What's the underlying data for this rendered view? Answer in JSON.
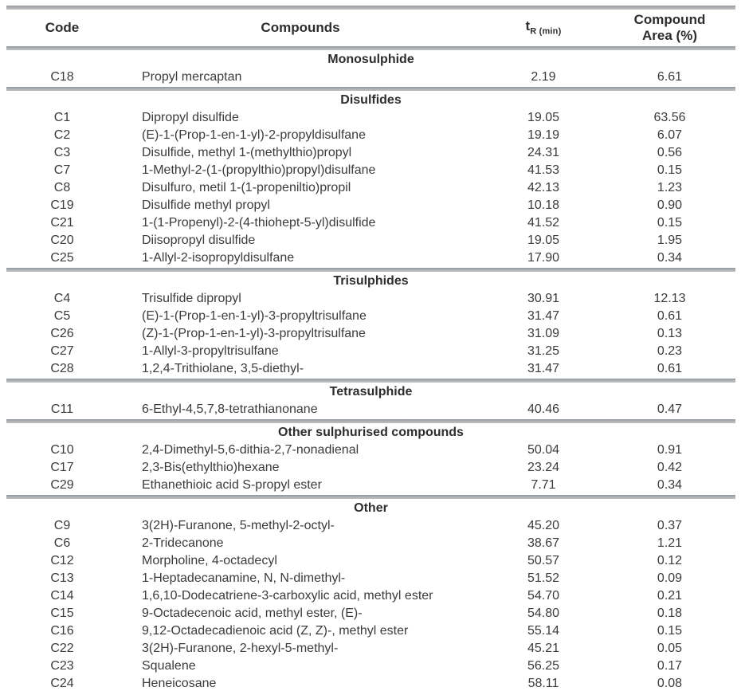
{
  "header": {
    "code": "Code",
    "compounds": "Compounds",
    "tr_base": "t",
    "tr_sub": "R (min)",
    "area_line1": "Compound",
    "area_line2": "Area (%)"
  },
  "sections": [
    {
      "title": "Monosulphide",
      "rows": [
        {
          "code": "C18",
          "compound": "Propyl mercaptan",
          "tr": "2.19",
          "area": "6.61"
        }
      ]
    },
    {
      "title": "Disulfides",
      "rows": [
        {
          "code": "C1",
          "compound": "Dipropyl disulfide",
          "tr": "19.05",
          "area": "63.56"
        },
        {
          "code": "C2",
          "compound": "(E)-1-(Prop-1-en-1-yl)-2-propyldisulfane",
          "tr": "19.19",
          "area": "6.07"
        },
        {
          "code": "C3",
          "compound": "Disulfide, methyl 1-(methylthio)propyl",
          "tr": "24.31",
          "area": "0.56"
        },
        {
          "code": "C7",
          "compound": "1-Methyl-2-(1-(propylthio)propyl)disulfane",
          "tr": "41.53",
          "area": "0.15"
        },
        {
          "code": "C8",
          "compound": "Disulfuro, metil 1-(1-propeniltio)propil",
          "tr": "42.13",
          "area": "1.23"
        },
        {
          "code": "C19",
          "compound": "Disulfide  methyl propyl",
          "tr": "10.18",
          "area": "0.90"
        },
        {
          "code": "C21",
          "compound": "1-(1-Propenyl)-2-(4-thiohept-5-yl)disulfide",
          "tr": "41.52",
          "area": "0.15"
        },
        {
          "code": "C20",
          "compound": "Diisopropyl disulfide",
          "tr": "19.05",
          "area": "1.95"
        },
        {
          "code": "C25",
          "compound": "1-Allyl-2-isopropyldisulfane",
          "tr": "17.90",
          "area": "0.34"
        }
      ]
    },
    {
      "title": "Trisulphides",
      "rows": [
        {
          "code": "C4",
          "compound": "Trisulfide  dipropyl",
          "tr": "30.91",
          "area": "12.13"
        },
        {
          "code": "C5",
          "compound": "(E)-1-(Prop-1-en-1-yl)-3-propyltrisulfane",
          "tr": "31.47",
          "area": "0.61"
        },
        {
          "code": "C26",
          "compound": "(Z)-1-(Prop-1-en-1-yl)-3-propyltrisulfane",
          "tr": "31.09",
          "area": "0.13"
        },
        {
          "code": "C27",
          "compound": "1-Allyl-3-propyltrisulfane",
          "tr": "31.25",
          "area": "0.23"
        },
        {
          "code": "C28",
          "compound": "1,2,4-Trithiolane, 3,5-diethyl-",
          "tr": "31.47",
          "area": "0.61"
        }
      ]
    },
    {
      "title": "Tetrasulphide",
      "rows": [
        {
          "code": "C11",
          "compound": "6-Ethyl-4,5,7,8-tetrathianonane",
          "tr": "40.46",
          "area": "0.47"
        }
      ]
    },
    {
      "title": "Other sulphurised compounds",
      "rows": [
        {
          "code": "C10",
          "compound": "2,4-Dimethyl-5,6-dithia-2,7-nonadienal",
          "tr": "50.04",
          "area": "0.91"
        },
        {
          "code": "C17",
          "compound": "2,3-Bis(ethylthio)hexane",
          "tr": "23.24",
          "area": "0.42"
        },
        {
          "code": "C29",
          "compound": "Ethanethioic acid S-propyl ester",
          "tr": "7.71",
          "area": "0.34"
        }
      ]
    },
    {
      "title": "Other",
      "rows": [
        {
          "code": "C9",
          "compound": "3(2H)-Furanone, 5-methyl-2-octyl-",
          "tr": "45.20",
          "area": "0.37"
        },
        {
          "code": "C6",
          "compound": "2-Tridecanone",
          "tr": "38.67",
          "area": "1.21"
        },
        {
          "code": "C12",
          "compound": "Morpholine, 4-octadecyl",
          "tr": "50.57",
          "area": "0.12"
        },
        {
          "code": "C13",
          "compound": "1-Heptadecanamine, N, N-dimethyl-",
          "tr": "51.52",
          "area": "0.09"
        },
        {
          "code": "C14",
          "compound": "1,6,10-Dodecatriene-3-carboxylic acid, methyl ester",
          "tr": "54.70",
          "area": "0.21"
        },
        {
          "code": "C15",
          "compound": "9-Octadecenoic acid, methyl ester, (E)-",
          "tr": "54.80",
          "area": "0.18"
        },
        {
          "code": "C16",
          "compound": "9,12-Octadecadienoic acid (Z, Z)-, methyl ester",
          "tr": "55.14",
          "area": "0.15"
        },
        {
          "code": "C22",
          "compound": "3(2H)-Furanone, 2-hexyl-5-methyl-",
          "tr": "45.21",
          "area": "0.05"
        },
        {
          "code": "C23",
          "compound": "Squalene",
          "tr": "56.25",
          "area": "0.17"
        },
        {
          "code": "C24",
          "compound": "Heneicosane",
          "tr": "58.11",
          "area": "0.08"
        }
      ]
    }
  ],
  "colors": {
    "divider_dark": "#8e949a",
    "divider_light": "#bfbfbf",
    "text": "#3b3b3b"
  }
}
